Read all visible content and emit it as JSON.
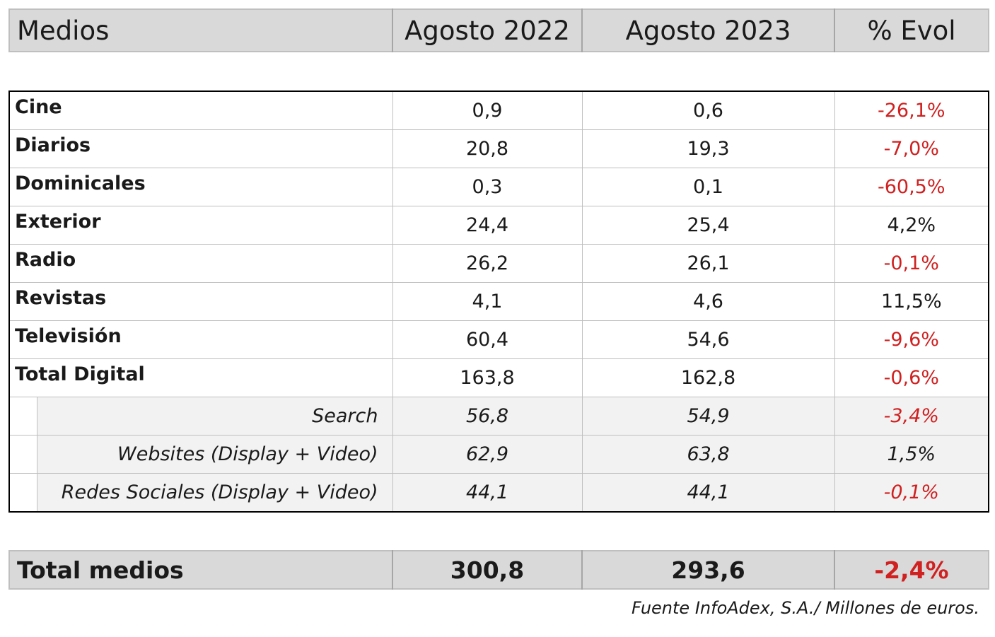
{
  "header": {
    "medios": "Medios",
    "col_2022": "Agosto 2022",
    "col_2023": "Agosto 2023",
    "col_evol": "% Evol"
  },
  "rows": [
    {
      "label": "Cine",
      "v2022": "0,9",
      "v2023": "0,6",
      "evol": "-26,1%",
      "negative": true,
      "sub": false
    },
    {
      "label": "Diarios",
      "v2022": "20,8",
      "v2023": "19,3",
      "evol": "-7,0%",
      "negative": true,
      "sub": false
    },
    {
      "label": "Dominicales",
      "v2022": "0,3",
      "v2023": "0,1",
      "evol": "-60,5%",
      "negative": true,
      "sub": false
    },
    {
      "label": "Exterior",
      "v2022": "24,4",
      "v2023": "25,4",
      "evol": "4,2%",
      "negative": false,
      "sub": false
    },
    {
      "label": "Radio",
      "v2022": "26,2",
      "v2023": "26,1",
      "evol": "-0,1%",
      "negative": true,
      "sub": false
    },
    {
      "label": "Revistas",
      "v2022": "4,1",
      "v2023": "4,6",
      "evol": "11,5%",
      "negative": false,
      "sub": false
    },
    {
      "label": "Televisión",
      "v2022": "60,4",
      "v2023": "54,6",
      "evol": "-9,6%",
      "negative": true,
      "sub": false
    },
    {
      "label": "Total Digital",
      "v2022": "163,8",
      "v2023": "162,8",
      "evol": "-0,6%",
      "negative": true,
      "sub": false
    },
    {
      "label": "Search",
      "v2022": "56,8",
      "v2023": "54,9",
      "evol": "-3,4%",
      "negative": true,
      "sub": true
    },
    {
      "label": "Websites (Display + Video)",
      "v2022": "62,9",
      "v2023": "63,8",
      "evol": "1,5%",
      "negative": false,
      "sub": true
    },
    {
      "label": "Redes Sociales (Display + Video)",
      "v2022": "44,1",
      "v2023": "44,1",
      "evol": "-0,1%",
      "negative": true,
      "sub": true
    }
  ],
  "total": {
    "label": "Total medios",
    "v2022": "300,8",
    "v2023": "293,6",
    "evol": "-2,4%",
    "negative": true
  },
  "source": "Fuente InfoAdex, S.A./ Millones de euros.",
  "colors": {
    "negative": "#d02020",
    "header_bg": "#d9d9d9",
    "sub_bg": "#f2f2f2"
  },
  "chart_data": {
    "type": "table",
    "columns": [
      "Medios",
      "Agosto 2022",
      "Agosto 2023",
      "% Evol"
    ],
    "rows": [
      [
        "Cine",
        0.9,
        0.6,
        -26.1
      ],
      [
        "Diarios",
        20.8,
        19.3,
        -7.0
      ],
      [
        "Dominicales",
        0.3,
        0.1,
        -60.5
      ],
      [
        "Exterior",
        24.4,
        25.4,
        4.2
      ],
      [
        "Radio",
        26.2,
        26.1,
        -0.1
      ],
      [
        "Revistas",
        4.1,
        4.6,
        11.5
      ],
      [
        "Televisión",
        60.4,
        54.6,
        -9.6
      ],
      [
        "Total Digital",
        163.8,
        162.8,
        -0.6
      ],
      [
        "Search",
        56.8,
        54.9,
        -3.4
      ],
      [
        "Websites (Display + Video)",
        62.9,
        63.8,
        1.5
      ],
      [
        "Redes Sociales (Display + Video)",
        44.1,
        44.1,
        -0.1
      ],
      [
        "Total medios",
        300.8,
        293.6,
        -2.4
      ]
    ]
  }
}
